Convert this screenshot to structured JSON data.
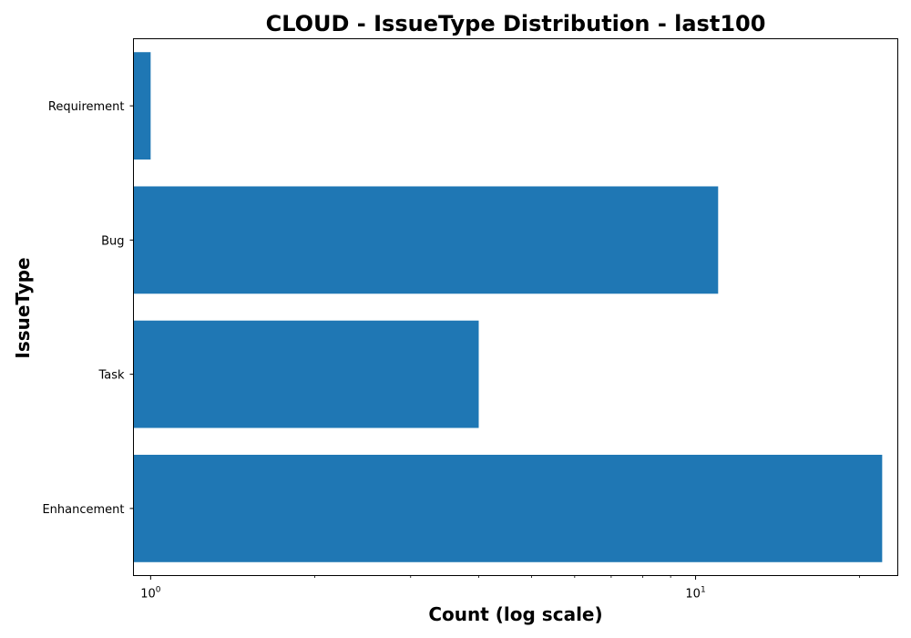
{
  "chart_data": {
    "type": "bar",
    "orientation": "horizontal",
    "title": "CLOUD - IssueType Distribution - last100",
    "xlabel": "Count (log scale)",
    "ylabel": "IssueType",
    "x_scale": "log",
    "xlim": [
      0.93,
      23.5
    ],
    "x_ticks": [
      {
        "value": 1,
        "base": "10",
        "exp": "0"
      },
      {
        "value": 10,
        "base": "10",
        "exp": "1"
      }
    ],
    "categories": [
      "Enhancement",
      "Task",
      "Bug",
      "Requirement"
    ],
    "values": [
      22,
      4,
      11,
      1
    ],
    "bar_color": "#1f77b4",
    "grid": false,
    "legend": "none"
  }
}
